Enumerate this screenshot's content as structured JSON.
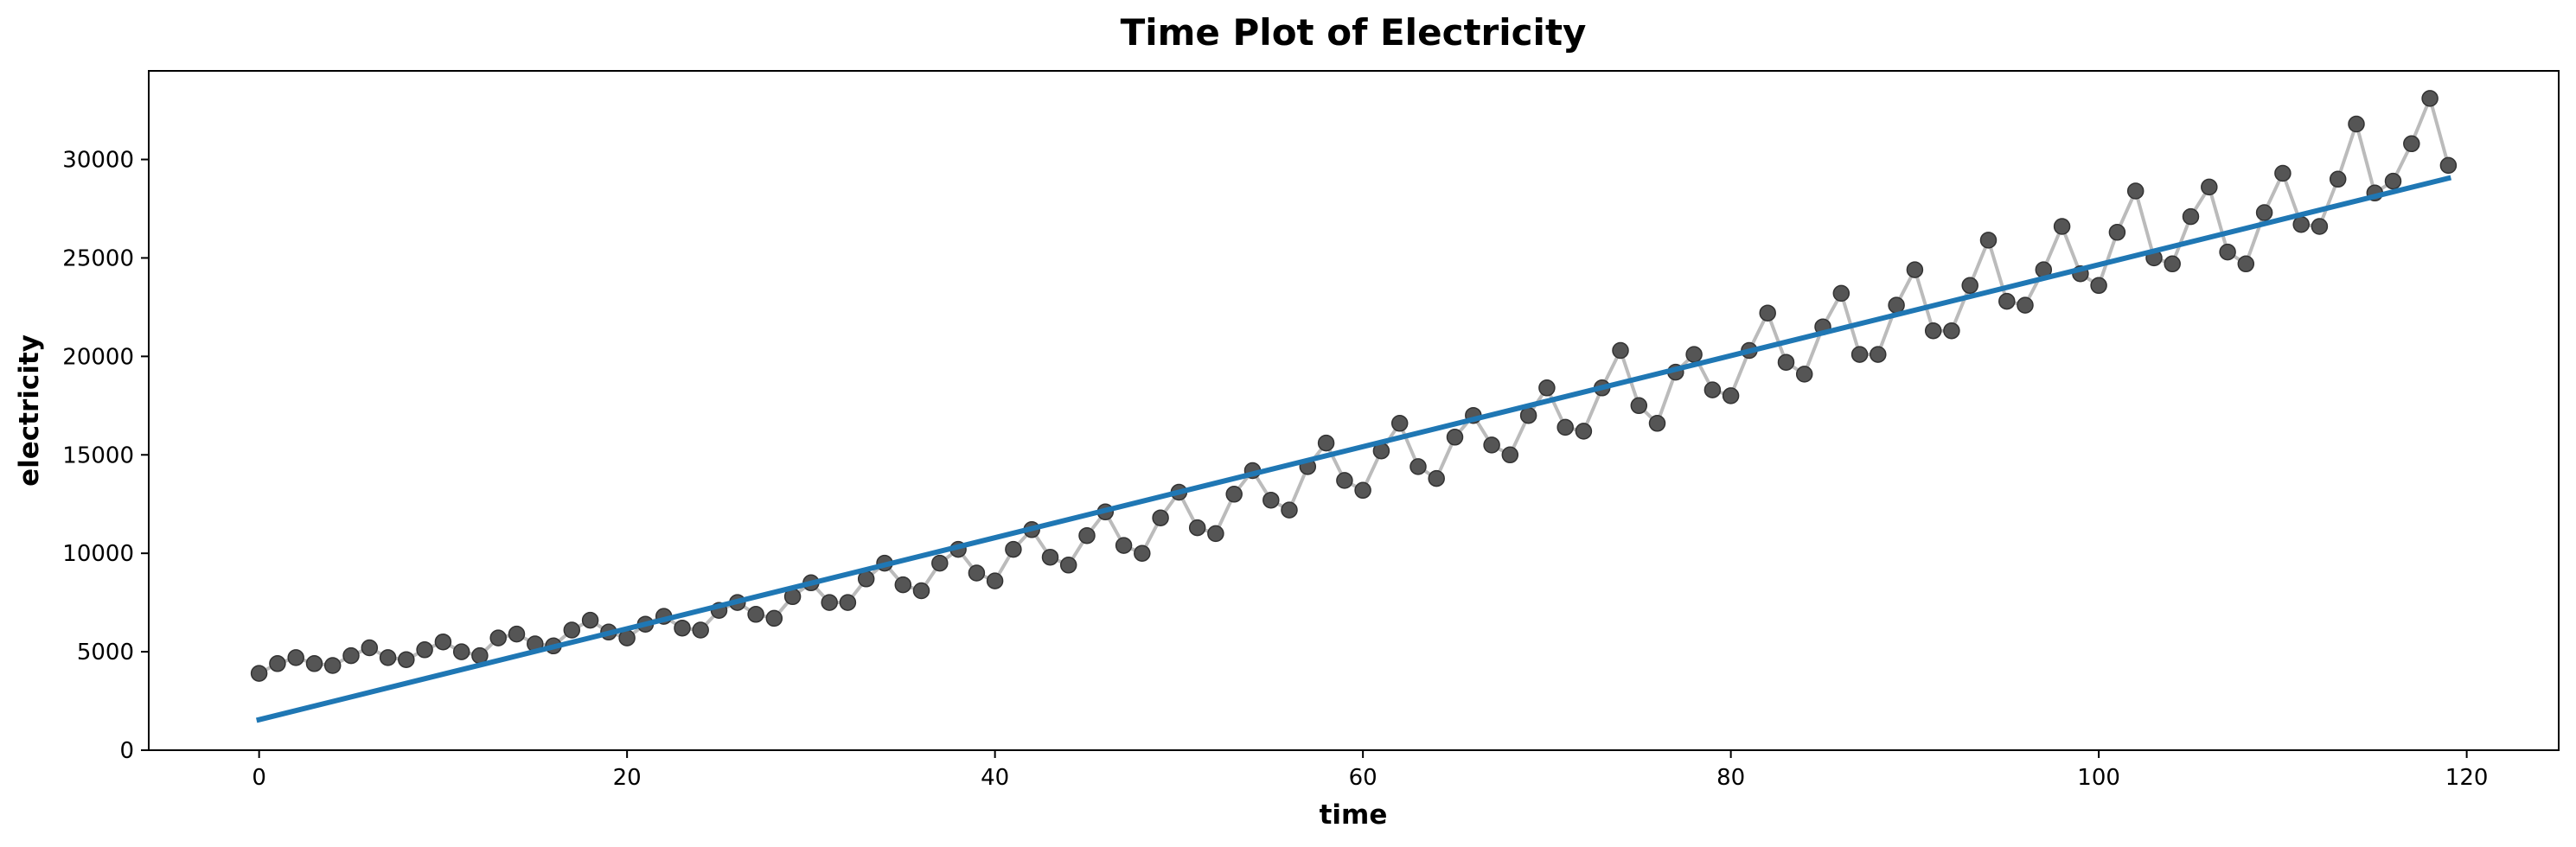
{
  "chart_data": {
    "type": "line",
    "title": "Time Plot of Electricity",
    "xlabel": "time",
    "ylabel": "electricity",
    "xlim": [
      -6,
      125
    ],
    "ylim": [
      0,
      34500
    ],
    "xticks": [
      0,
      20,
      40,
      60,
      80,
      100,
      120
    ],
    "yticks": [
      0,
      5000,
      10000,
      15000,
      20000,
      25000,
      30000
    ],
    "grid": false,
    "series": [
      {
        "kind": "observed",
        "style": "light gray line with dark circle markers",
        "line_color": "#bbbbbb",
        "marker_color": "#555555",
        "x": [
          0,
          1,
          2,
          3,
          4,
          5,
          6,
          7,
          8,
          9,
          10,
          11,
          12,
          13,
          14,
          15,
          16,
          17,
          18,
          19,
          20,
          21,
          22,
          23,
          24,
          25,
          26,
          27,
          28,
          29,
          30,
          31,
          32,
          33,
          34,
          35,
          36,
          37,
          38,
          39,
          40,
          41,
          42,
          43,
          44,
          45,
          46,
          47,
          48,
          49,
          50,
          51,
          52,
          53,
          54,
          55,
          56,
          57,
          58,
          59,
          60,
          61,
          62,
          63,
          64,
          65,
          66,
          67,
          68,
          69,
          70,
          71,
          72,
          73,
          74,
          75,
          76,
          77,
          78,
          79,
          80,
          81,
          82,
          83,
          84,
          85,
          86,
          87,
          88,
          89,
          90,
          91,
          92,
          93,
          94,
          95,
          96,
          97,
          98,
          99,
          100,
          101,
          102,
          103,
          104,
          105,
          106,
          107,
          108,
          109,
          110,
          111,
          112,
          113,
          114,
          115,
          116,
          117,
          118,
          119
        ],
        "y": [
          3900,
          4400,
          4700,
          4400,
          4300,
          4800,
          5200,
          4700,
          4600,
          5100,
          5500,
          5000,
          4800,
          5700,
          5900,
          5400,
          5300,
          6100,
          6600,
          6000,
          5700,
          6400,
          6800,
          6200,
          6100,
          7100,
          7500,
          6900,
          6700,
          7800,
          8500,
          7500,
          7500,
          8700,
          9500,
          8400,
          8100,
          9500,
          10200,
          9000,
          8600,
          10200,
          11200,
          9800,
          9400,
          10900,
          12100,
          10400,
          10000,
          11800,
          13100,
          11300,
          11000,
          13000,
          14200,
          12700,
          12200,
          14400,
          15600,
          13700,
          13200,
          15200,
          16600,
          14400,
          13800,
          15900,
          17000,
          15500,
          15000,
          17000,
          18400,
          16400,
          16200,
          18400,
          20300,
          17500,
          16600,
          19200,
          20100,
          18300,
          18000,
          20300,
          22200,
          19700,
          19100,
          21500,
          23200,
          20100,
          20100,
          22600,
          24400,
          21300,
          21300,
          23600,
          25900,
          22800,
          22600,
          24400,
          26600,
          24200,
          23600,
          26300,
          28400,
          25000,
          24700,
          27100,
          28600,
          25300,
          24700,
          27300,
          29300,
          26700,
          26600,
          29000,
          31800,
          28300,
          28900,
          30800,
          33100,
          29700
        ]
      },
      {
        "kind": "trend",
        "style": "solid line",
        "color": "#1f77b4",
        "x": [
          0,
          119
        ],
        "y": [
          1550,
          29050
        ]
      }
    ]
  }
}
